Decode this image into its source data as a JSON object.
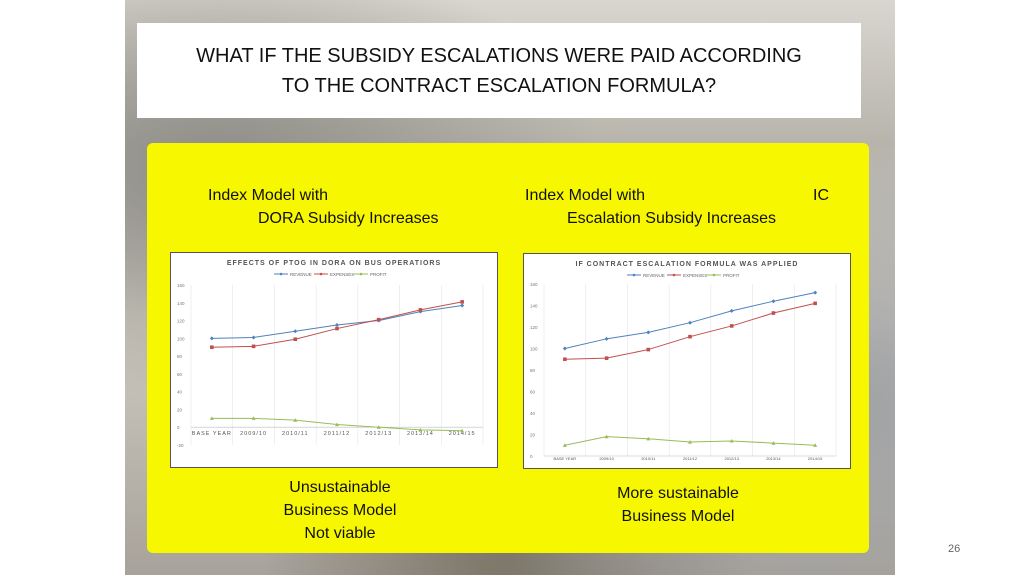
{
  "slide": {
    "title_line1": "WHAT IF THE SUBSIDY ESCALATIONS WERE PAID ACCORDING",
    "title_line2": "TO THE CONTRACT ESCALATION FORMULA?",
    "page_number": "26"
  },
  "left": {
    "heading_line1": "Index  Model with",
    "heading_line2": "DORA Subsidy Increases",
    "conclusion_line1": "Unsustainable",
    "conclusion_line2": "Business Model",
    "conclusion_line3": "Not viable"
  },
  "right": {
    "heading_line1": "Index  Model with",
    "heading_line1_suffix": "IC",
    "heading_line2": "Escalation Subsidy Increases",
    "conclusion_line1": "More sustainable",
    "conclusion_line2": "Business Model"
  },
  "colors": {
    "panel": "#f7f700",
    "revenue": "#4f81bd",
    "expenses": "#c0504d",
    "profit": "#9bbb59"
  },
  "chart_data": [
    {
      "type": "line",
      "title": "EFFECTS OF PTOG IN DORA ON BUS OPERATIORS",
      "categories": [
        "BASE YEAR",
        "2009/10",
        "2010/11",
        "2011/12",
        "2012/13",
        "2013/14",
        "2014/15"
      ],
      "ylim": [
        -20,
        160
      ],
      "yticks": [
        -20,
        0,
        20,
        40,
        60,
        80,
        100,
        120,
        140,
        160
      ],
      "legend_position": "top",
      "grid": "vertical",
      "series": [
        {
          "name": "REVENUE",
          "color": "#4f81bd",
          "marker": "diamond",
          "values": [
            100,
            101,
            108,
            115,
            120,
            130,
            137
          ]
        },
        {
          "name": "EXPENSES",
          "color": "#c0504d",
          "marker": "square",
          "values": [
            90,
            91,
            99,
            111,
            121,
            132,
            141
          ]
        },
        {
          "name": "PROFIT",
          "color": "#9bbb59",
          "marker": "triangle",
          "values": [
            10,
            10,
            8,
            3,
            0,
            -3,
            -4
          ]
        }
      ]
    },
    {
      "type": "line",
      "title": "IF CONTRACT ESCALATION FORMULA WAS APPLIED",
      "categories": [
        "BASE YEAR",
        "2009/10",
        "2010/11",
        "2011/12",
        "2012/13",
        "2013/14",
        "2014/15"
      ],
      "ylim": [
        0,
        160
      ],
      "yticks": [
        0,
        20,
        40,
        60,
        80,
        100,
        120,
        140,
        160
      ],
      "legend_position": "top",
      "grid": "vertical",
      "series": [
        {
          "name": "REVENUE",
          "color": "#4f81bd",
          "marker": "diamond",
          "values": [
            100,
            109,
            115,
            124,
            135,
            144,
            152
          ]
        },
        {
          "name": "EXPENSES",
          "color": "#c0504d",
          "marker": "square",
          "values": [
            90,
            91,
            99,
            111,
            121,
            133,
            142
          ]
        },
        {
          "name": "PROFIT",
          "color": "#9bbb59",
          "marker": "triangle",
          "values": [
            10,
            18,
            16,
            13,
            14,
            12,
            10
          ]
        }
      ]
    }
  ]
}
